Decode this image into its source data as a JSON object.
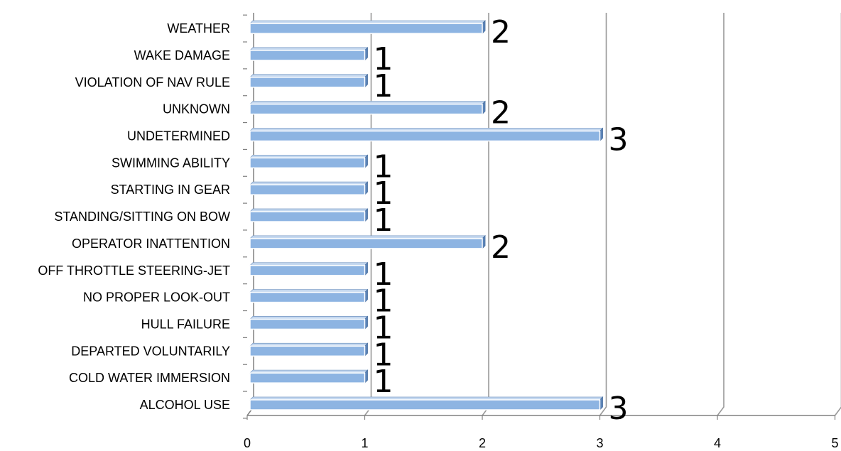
{
  "chart_data": {
    "type": "bar",
    "orientation": "horizontal",
    "title": "",
    "xlabel": "",
    "ylabel": "",
    "categories": [
      "ALCOHOL USE",
      "COLD WATER IMMERSION",
      "DEPARTED VOLUNTARILY",
      "HULL FAILURE",
      "NO PROPER LOOK-OUT",
      "OFF THROTTLE STEERING-JET",
      "OPERATOR INATTENTION",
      "STANDING/SITTING ON BOW",
      "STARTING IN GEAR",
      "SWIMMING ABILITY",
      "UNDETERMINED",
      "UNKNOWN",
      "VIOLATION OF NAV RULE",
      "WAKE DAMAGE",
      "WEATHER"
    ],
    "values": [
      3,
      1,
      1,
      1,
      1,
      1,
      2,
      1,
      1,
      1,
      3,
      2,
      1,
      1,
      2
    ],
    "data_labels": [
      "3",
      "1",
      "1",
      "1",
      "1",
      "1",
      "2",
      "1",
      "1",
      "1",
      "3",
      "2",
      "1",
      "1",
      "2"
    ],
    "xlim": [
      0,
      5
    ],
    "xticks": [
      "0",
      "1",
      "2",
      "3",
      "4",
      "5"
    ],
    "grid": true,
    "legend": "none",
    "style": "3d",
    "bar_color": "#8DB4E2",
    "gridline_color": "#999999"
  }
}
